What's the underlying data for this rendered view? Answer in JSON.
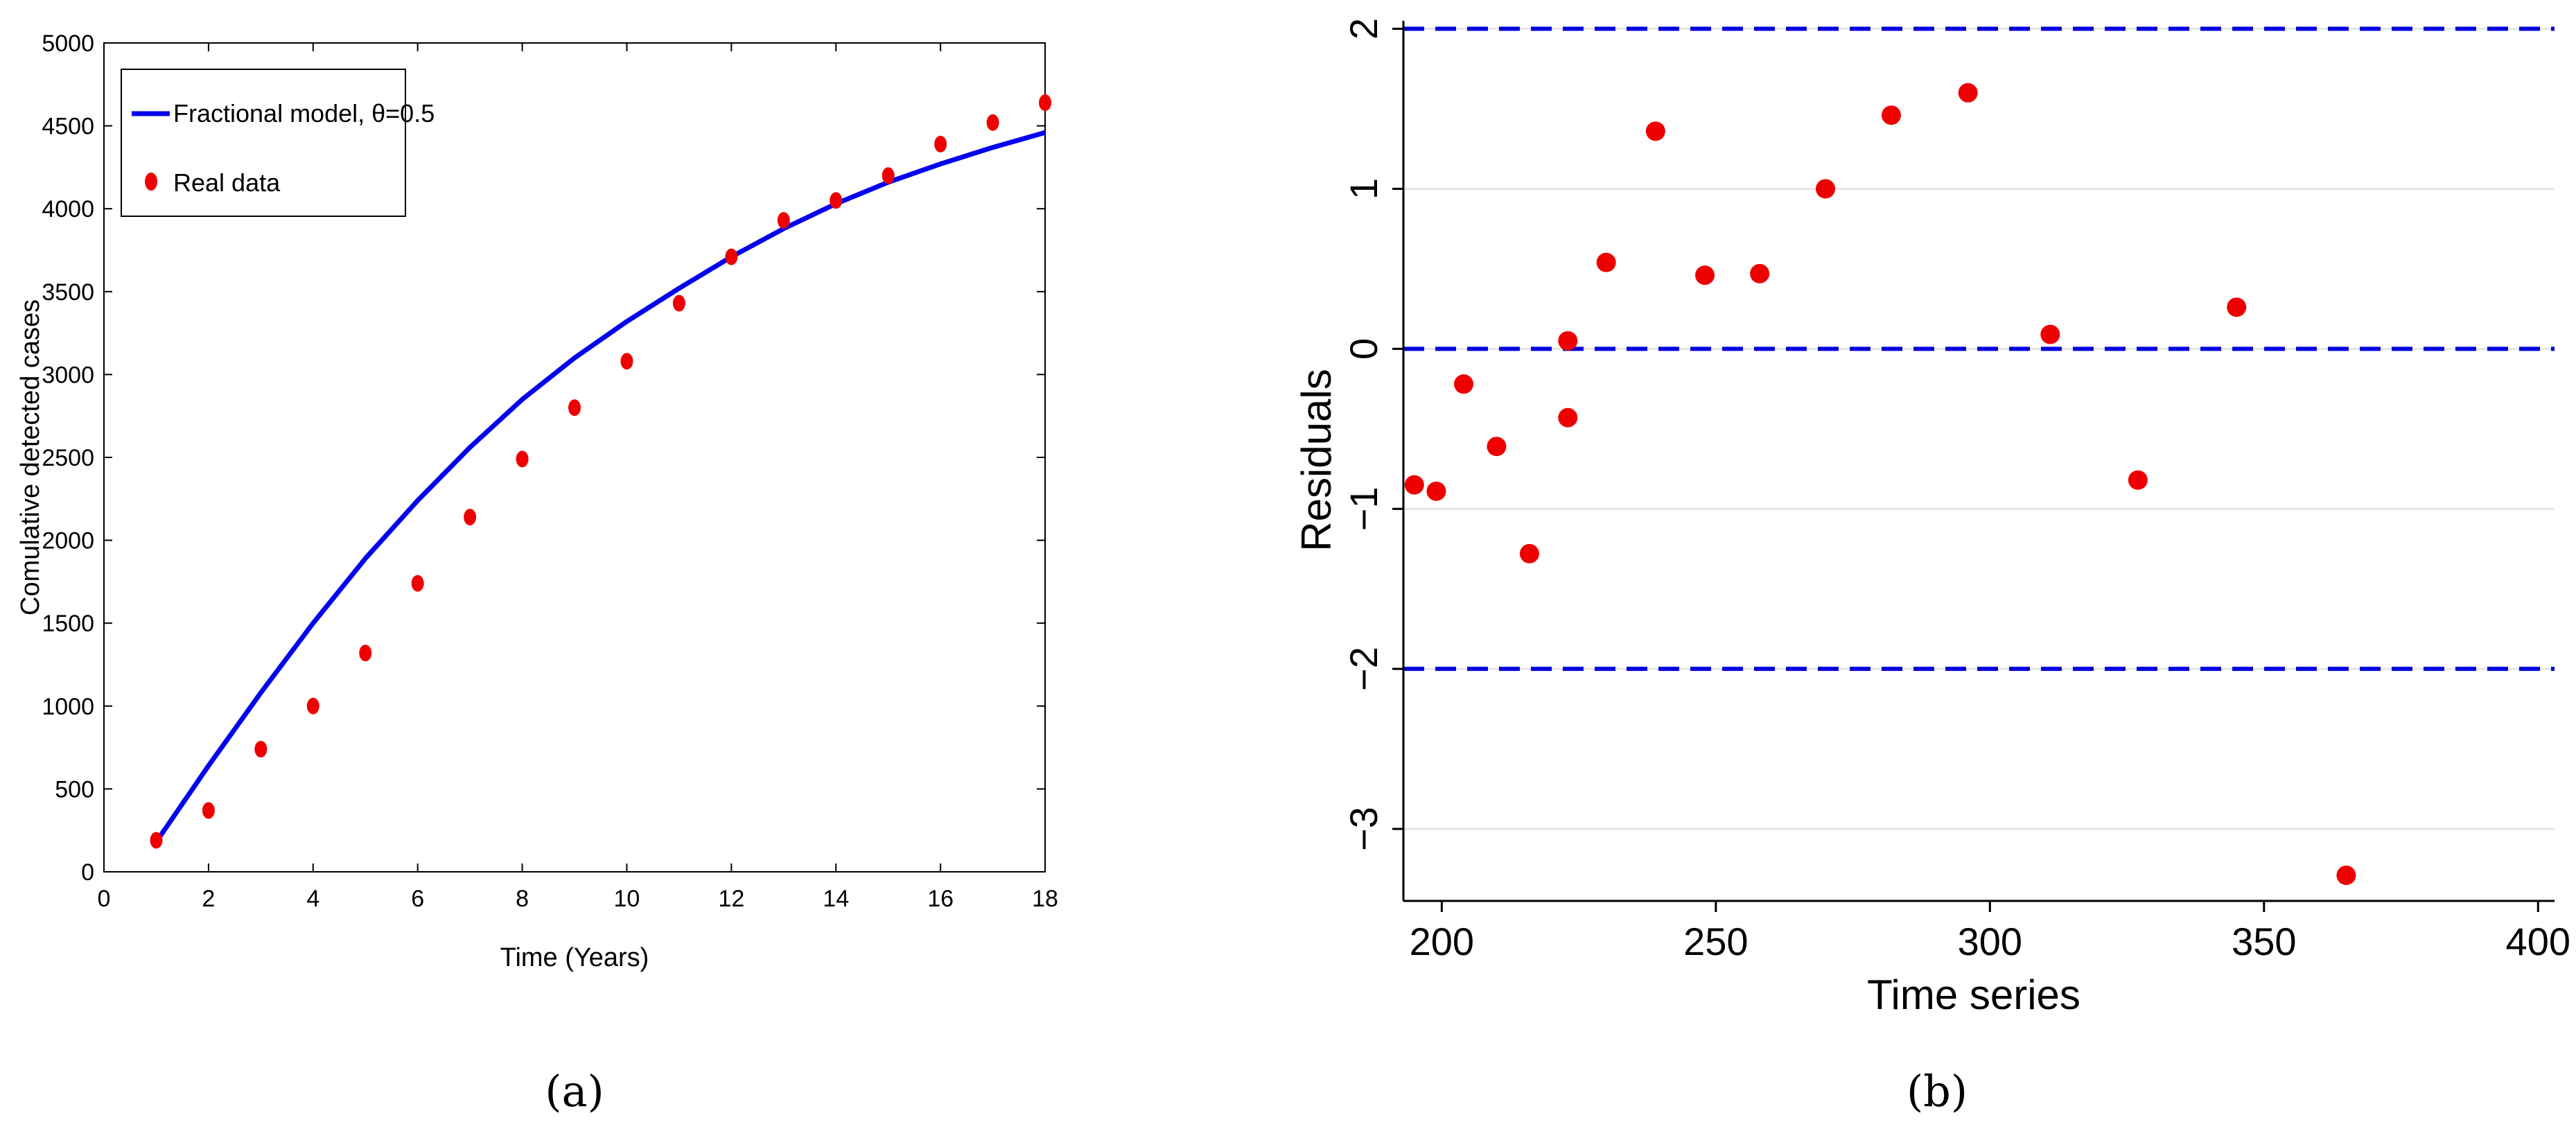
{
  "chart_data": [
    {
      "id": "a",
      "type": "line+scatter",
      "caption": "(a)",
      "xlabel": "Time (Years)",
      "ylabel": "Comulative detected cases",
      "xlim": [
        0,
        18
      ],
      "ylim": [
        0,
        5000
      ],
      "xticks": [
        0,
        2,
        4,
        6,
        8,
        10,
        12,
        14,
        16,
        18
      ],
      "yticks": [
        0,
        500,
        1000,
        1500,
        2000,
        2500,
        3000,
        3500,
        4000,
        4500,
        5000
      ],
      "legend": {
        "position": "top-left",
        "entries": [
          "Fractional model, θ=0.5",
          "Real data"
        ]
      },
      "series": [
        {
          "name": "Fractional model, θ=0.5",
          "kind": "line",
          "color": "#0000ee",
          "x": [
            1,
            2,
            3,
            4,
            5,
            6,
            7,
            8,
            9,
            10,
            11,
            12,
            13,
            14,
            15,
            16,
            17,
            18
          ],
          "y": [
            180,
            640,
            1080,
            1500,
            1890,
            2240,
            2560,
            2850,
            3100,
            3320,
            3520,
            3710,
            3880,
            4030,
            4160,
            4270,
            4370,
            4460
          ]
        },
        {
          "name": "Real data",
          "kind": "scatter",
          "color": "#ee0000",
          "x": [
            1,
            2,
            3,
            4,
            5,
            6,
            7,
            8,
            9,
            10,
            11,
            12,
            13,
            14,
            15,
            16,
            17,
            18
          ],
          "y": [
            190,
            370,
            740,
            1000,
            1320,
            1740,
            2140,
            2490,
            2800,
            3080,
            3430,
            3710,
            3930,
            4050,
            4200,
            4390,
            4520,
            4640
          ]
        }
      ]
    },
    {
      "id": "b",
      "type": "scatter",
      "caption": "(b)",
      "xlabel": "Time series",
      "ylabel": "Residuals",
      "xlim": [
        193,
        403
      ],
      "ylim": [
        -3.45,
        2.05
      ],
      "xticks": [
        200,
        250,
        300,
        350,
        400
      ],
      "yticks": [
        -3,
        -2,
        -1,
        0,
        1,
        2
      ],
      "ytick_labels": [
        "−3",
        "−2",
        "−1",
        "0",
        "1",
        "2"
      ],
      "grid": true,
      "reference_lines": [
        {
          "y": 2,
          "style": "dashed",
          "color": "#0000dd"
        },
        {
          "y": 0,
          "style": "dashed",
          "color": "#0000dd"
        },
        {
          "y": -2,
          "style": "dashed",
          "color": "#0000dd"
        }
      ],
      "series": [
        {
          "name": "Residuals",
          "color": "#ee0000",
          "x": [
            195,
            199,
            204,
            210,
            216,
            223,
            223,
            230,
            239,
            248,
            258,
            270,
            282,
            296,
            311,
            327,
            345,
            365
          ],
          "y": [
            -0.85,
            -0.89,
            -0.22,
            -0.61,
            -1.28,
            0.05,
            -0.43,
            0.54,
            1.36,
            0.46,
            0.47,
            1.0,
            1.46,
            1.6,
            0.09,
            -0.82,
            0.26,
            -3.29
          ]
        }
      ]
    }
  ]
}
